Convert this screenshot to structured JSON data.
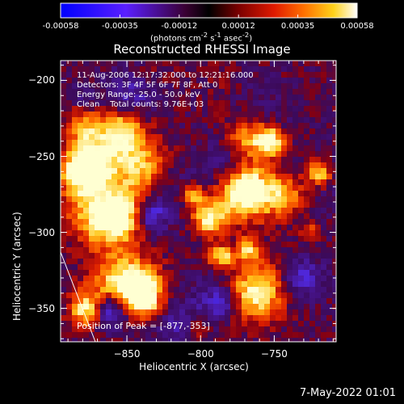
{
  "colorbar": {
    "ticks": [
      "-0.00058",
      "-0.00035",
      "-0.00012",
      "0.00012",
      "0.00035",
      "0.00058"
    ],
    "unit_html": "(photons cm<sup>-2</sup> s<sup>-1</sup> asec<sup>-2</sup>)",
    "unit": "(photons cm-2 s-1 asec-2)"
  },
  "chart_data": {
    "type": "heatmap",
    "title": "Reconstructed RHESSI Image",
    "xlabel": "Heliocentric X (arcsec)",
    "ylabel": "Heliocentric Y (arcsec)",
    "xlim": [
      -895,
      -708
    ],
    "ylim": [
      -372,
      -187
    ],
    "xticks": [
      -850,
      -800,
      -750
    ],
    "yticks": [
      -200,
      -250,
      -300,
      -350
    ],
    "value_range": [
      -0.00058,
      0.00058
    ],
    "colormap": "red-temperature with negative blues",
    "annotations": [
      "11-Aug-2006 12:17:32.000 to 12:21:16.000",
      "Detectors: 3F 4F 5F 6F 7F 8F, Att 0",
      "Energy Range: 25.0 - 50.0 keV",
      "Clean    Total counts: 9.76E+03"
    ],
    "peak_text": "Position of Peak = [-877,-353]"
  },
  "footer": {
    "date": "7-May-2022 01:01"
  },
  "colors": {
    "background": "#000000",
    "axes": "#ffffff"
  }
}
